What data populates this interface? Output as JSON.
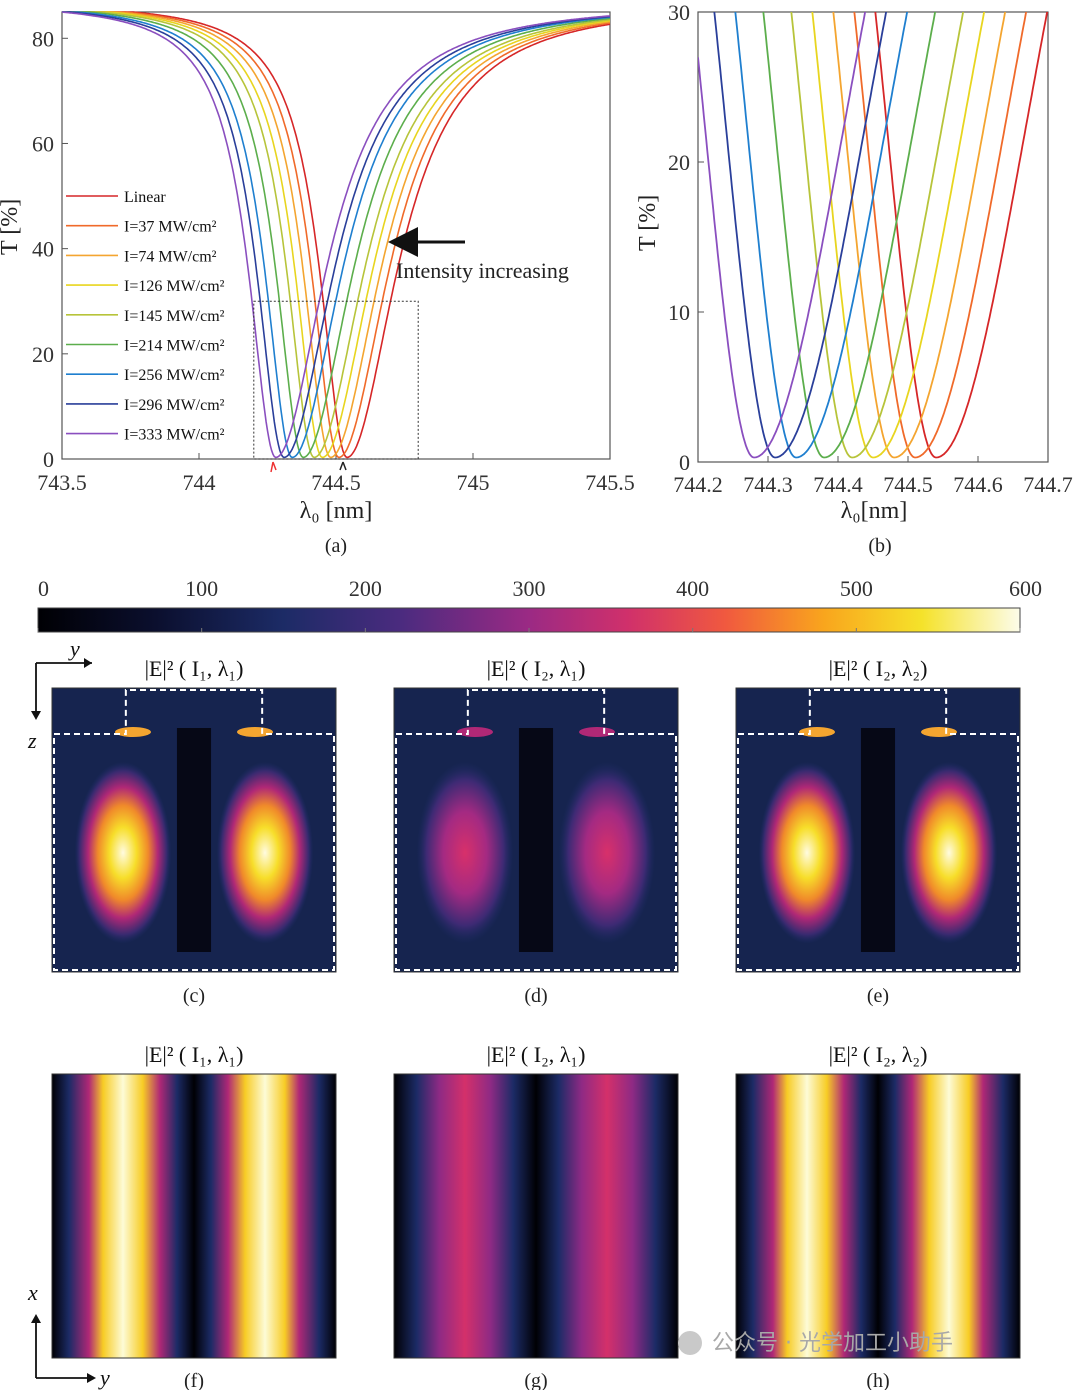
{
  "chart_data": [
    {
      "panel": "a",
      "type": "line",
      "panel_label": "(a)",
      "xlabel": "λ₀ [nm]",
      "ylabel": "T [%]",
      "xlim": [
        743.5,
        745.5
      ],
      "ylim": [
        0,
        85
      ],
      "xticks": [
        "743.5",
        "744",
        "744.5",
        "745",
        "745.5"
      ],
      "yticks": [
        "0",
        "20",
        "40",
        "60",
        "80"
      ],
      "annotation": "Intensity increasing",
      "legend_position": "left",
      "series": [
        {
          "name": "Linear",
          "color": "#d62728",
          "center": 744.54
        },
        {
          "name": "I=37 MW/cm²",
          "color": "#f06a2a",
          "center": 744.51
        },
        {
          "name": "I=74 MW/cm²",
          "color": "#f4a530",
          "center": 744.48
        },
        {
          "name": "I=126 MW/cm²",
          "color": "#e8d51f",
          "center": 744.45
        },
        {
          "name": "I=145 MW/cm²",
          "color": "#b7c43a",
          "center": 744.42
        },
        {
          "name": "I=214 MW/cm²",
          "color": "#5cae4c",
          "center": 744.38
        },
        {
          "name": "I=256 MW/cm²",
          "color": "#1f7fcf",
          "center": 744.34
        },
        {
          "name": "I=296 MW/cm²",
          "color": "#2a3f9a",
          "center": 744.31
        },
        {
          "name": "I=333 MW/cm²",
          "color": "#8a4fbf",
          "center": 744.28
        }
      ],
      "dip_profile": {
        "baseline": 87,
        "min": 0.3,
        "halfwidth_left": 0.12,
        "halfwidth_right": 0.22
      }
    },
    {
      "panel": "b",
      "type": "line",
      "panel_label": "(b)",
      "xlabel": "λ₀[nm]",
      "ylabel": "T [%]",
      "xlim": [
        744.2,
        744.7
      ],
      "ylim": [
        0,
        30
      ],
      "xticks": [
        "744.2",
        "744.3",
        "744.4",
        "744.5",
        "744.6",
        "744.7"
      ],
      "yticks": [
        "0",
        "10",
        "20",
        "30"
      ],
      "note": "zoom of dashed box in (a)"
    },
    {
      "type": "heatmap",
      "colorbar": {
        "min": 0,
        "max": 600,
        "ticks": [
          "0",
          "100",
          "200",
          "300",
          "400",
          "500",
          "600"
        ]
      },
      "maps": [
        {
          "panel_label": "(c)",
          "title": "|E|² ( I₁, λ₁)",
          "peak": 560,
          "view": "yz"
        },
        {
          "panel_label": "(d)",
          "title": "|E|² ( I₂, λ₁)",
          "peak": 330,
          "view": "yz"
        },
        {
          "panel_label": "(e)",
          "title": "|E|² ( I₂, λ₂)",
          "peak": 580,
          "view": "yz"
        },
        {
          "panel_label": "(f)",
          "title": "|E|² ( I₁, λ₁)",
          "peak": 560,
          "view": "xy"
        },
        {
          "panel_label": "(g)",
          "title": "|E|² ( I₂, λ₁)",
          "peak": 330,
          "view": "xy"
        },
        {
          "panel_label": "(h)",
          "title": "|E|² ( I₂, λ₂)",
          "peak": 580,
          "view": "xy"
        }
      ],
      "axis_glyphs": {
        "y": "y",
        "z": "z",
        "x": "x"
      }
    }
  ],
  "watermark": "公众号 · 光学加工小助手"
}
